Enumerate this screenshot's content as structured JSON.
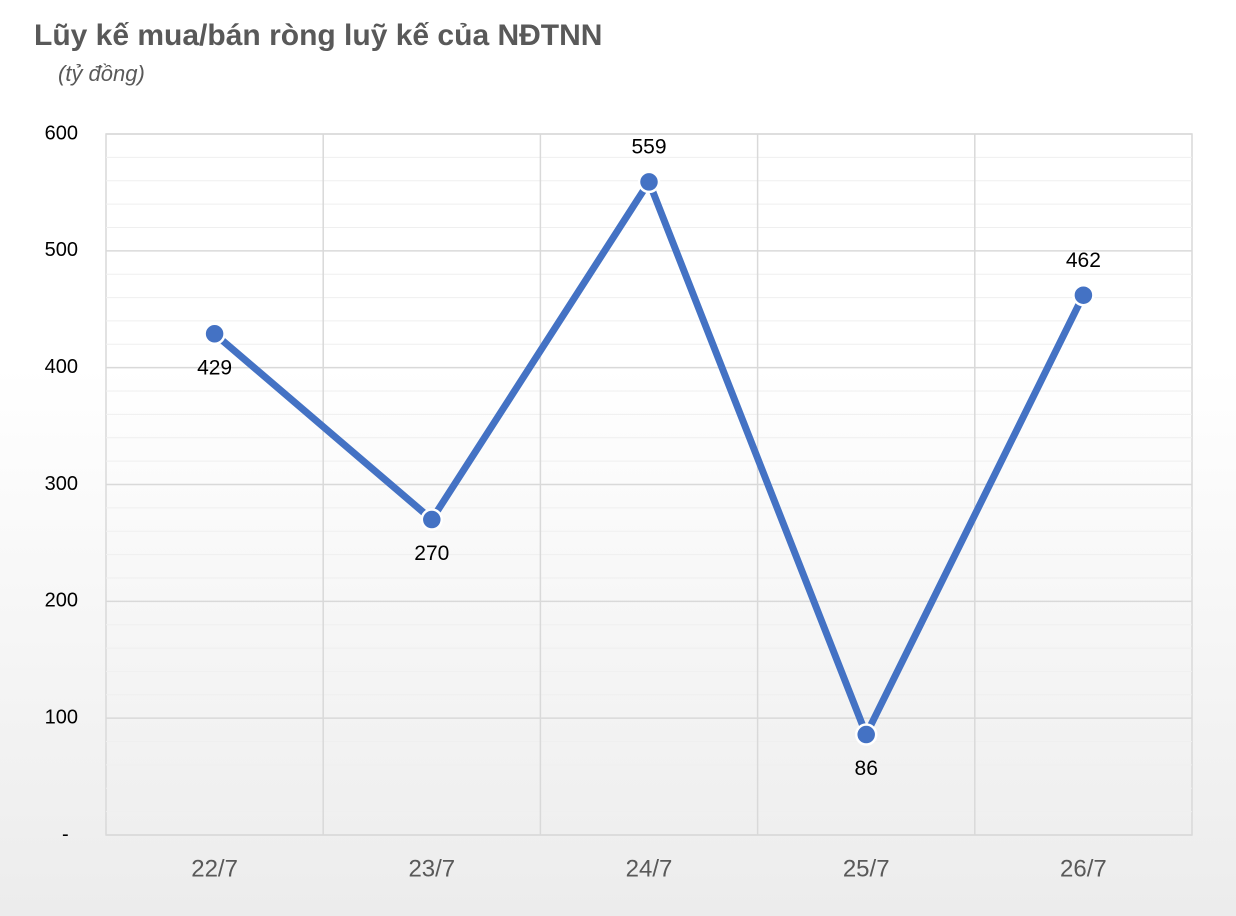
{
  "chart_data": {
    "type": "line",
    "title": "Lũy kế mua/bán ròng luỹ kế của NĐTNN",
    "subtitle": "(tỷ đồng)",
    "categories": [
      "22/7",
      "23/7",
      "24/7",
      "25/7",
      "26/7"
    ],
    "series": [
      {
        "name": "Lũy kế mua/bán ròng",
        "color": "#4472c4",
        "values": [
          429,
          270,
          559,
          86,
          462
        ]
      }
    ],
    "ylim": [
      0,
      600
    ],
    "yticks": [
      {
        "value": 0,
        "label": "-"
      },
      100,
      200,
      300,
      400,
      500,
      600
    ],
    "grid": true,
    "minor_grid_divisions": 5,
    "legend": false
  }
}
